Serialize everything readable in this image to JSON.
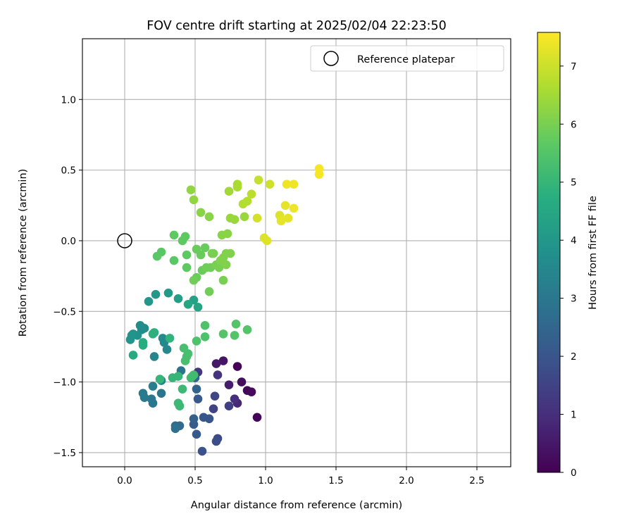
{
  "chart_data": {
    "type": "scatter",
    "title": "FOV centre drift starting at 2025/02/04 22:23:50",
    "xlabel": "Angular distance from reference (arcmin)",
    "ylabel": "Rotation from reference (arcmin)",
    "xlim": [
      -0.3,
      2.74
    ],
    "ylim": [
      -1.6,
      1.43
    ],
    "xticks": [
      0.0,
      0.5,
      1.0,
      1.5,
      2.0,
      2.5
    ],
    "xtick_labels": [
      "0.0",
      "0.5",
      "1.0",
      "1.5",
      "2.0",
      "2.5"
    ],
    "yticks": [
      -1.5,
      -1.0,
      -0.5,
      0.0,
      0.5,
      1.0
    ],
    "ytick_labels": [
      "−1.5",
      "−1.0",
      "−0.5",
      "0.0",
      "0.5",
      "1.0"
    ],
    "grid": true,
    "colormap": "viridis",
    "colorbar": {
      "label": "Hours from first FF file",
      "range": [
        0,
        7.58
      ],
      "ticks": [
        0,
        1,
        2,
        3,
        4,
        5,
        6,
        7
      ],
      "tick_labels": [
        "0",
        "1",
        "2",
        "3",
        "4",
        "5",
        "6",
        "7"
      ]
    },
    "legend": {
      "position": "top-right",
      "entries": [
        {
          "label": "Reference platepar",
          "marker": "open-circle"
        }
      ]
    },
    "reference_point": {
      "x": 0.0,
      "y": 0.0
    },
    "points": [
      {
        "x": 0.8,
        "y": -0.89,
        "c": 0.05
      },
      {
        "x": 0.94,
        "y": -1.25,
        "c": 0.1
      },
      {
        "x": 0.87,
        "y": -1.06,
        "c": 0.15
      },
      {
        "x": 0.9,
        "y": -1.07,
        "c": 0.2
      },
      {
        "x": 0.83,
        "y": -1.0,
        "c": 0.3
      },
      {
        "x": 0.7,
        "y": -0.85,
        "c": 0.4
      },
      {
        "x": 0.65,
        "y": -0.87,
        "c": 0.5
      },
      {
        "x": 0.74,
        "y": -1.02,
        "c": 0.6
      },
      {
        "x": 0.8,
        "y": -1.15,
        "c": 0.8
      },
      {
        "x": 0.78,
        "y": -1.12,
        "c": 1.0
      },
      {
        "x": 0.66,
        "y": -0.95,
        "c": 1.1
      },
      {
        "x": 0.52,
        "y": -0.93,
        "c": 1.2
      },
      {
        "x": 0.74,
        "y": -1.17,
        "c": 1.4
      },
      {
        "x": 0.63,
        "y": -1.19,
        "c": 1.5
      },
      {
        "x": 0.64,
        "y": -1.1,
        "c": 1.6
      },
      {
        "x": 0.66,
        "y": -1.4,
        "c": 1.7
      },
      {
        "x": 0.65,
        "y": -1.42,
        "c": 1.8
      },
      {
        "x": 0.55,
        "y": -1.49,
        "c": 1.9
      },
      {
        "x": 0.6,
        "y": -1.26,
        "c": 2.0
      },
      {
        "x": 0.56,
        "y": -1.25,
        "c": 2.0
      },
      {
        "x": 0.52,
        "y": -1.12,
        "c": 2.1
      },
      {
        "x": 0.51,
        "y": -1.37,
        "c": 2.1
      },
      {
        "x": 0.49,
        "y": -1.3,
        "c": 2.2
      },
      {
        "x": 0.49,
        "y": -1.26,
        "c": 2.3
      },
      {
        "x": 0.51,
        "y": -1.05,
        "c": 2.4
      },
      {
        "x": 0.5,
        "y": -0.97,
        "c": 2.5
      },
      {
        "x": 0.39,
        "y": -1.31,
        "c": 2.6
      },
      {
        "x": 0.36,
        "y": -1.31,
        "c": 2.7
      },
      {
        "x": 0.36,
        "y": -1.33,
        "c": 2.8
      },
      {
        "x": 0.4,
        "y": -0.92,
        "c": 2.9
      },
      {
        "x": 0.26,
        "y": -1.08,
        "c": 2.9
      },
      {
        "x": 0.2,
        "y": -1.15,
        "c": 3.0
      },
      {
        "x": 0.19,
        "y": -1.12,
        "c": 3.0
      },
      {
        "x": 0.14,
        "y": -1.11,
        "c": 3.1
      },
      {
        "x": 0.13,
        "y": -1.08,
        "c": 3.1
      },
      {
        "x": 0.2,
        "y": -1.03,
        "c": 3.2
      },
      {
        "x": 0.26,
        "y": -0.99,
        "c": 3.3
      },
      {
        "x": 0.21,
        "y": -0.82,
        "c": 3.4
      },
      {
        "x": 0.3,
        "y": -0.77,
        "c": 3.5
      },
      {
        "x": 0.28,
        "y": -0.72,
        "c": 3.5
      },
      {
        "x": 0.27,
        "y": -0.69,
        "c": 3.6
      },
      {
        "x": 0.14,
        "y": -0.62,
        "c": 3.6
      },
      {
        "x": 0.11,
        "y": -0.6,
        "c": 3.7
      },
      {
        "x": 0.12,
        "y": -0.63,
        "c": 3.7
      },
      {
        "x": 0.09,
        "y": -0.67,
        "c": 3.8
      },
      {
        "x": 0.06,
        "y": -0.66,
        "c": 3.8
      },
      {
        "x": 0.05,
        "y": -0.67,
        "c": 3.9
      },
      {
        "x": 0.04,
        "y": -0.7,
        "c": 3.9
      },
      {
        "x": 0.17,
        "y": -0.43,
        "c": 4.0
      },
      {
        "x": 0.22,
        "y": -0.38,
        "c": 4.0
      },
      {
        "x": 0.31,
        "y": -0.37,
        "c": 4.1
      },
      {
        "x": 0.38,
        "y": -0.41,
        "c": 4.2
      },
      {
        "x": 0.49,
        "y": -0.42,
        "c": 4.3
      },
      {
        "x": 0.52,
        "y": -0.47,
        "c": 4.4
      },
      {
        "x": 0.45,
        "y": -0.45,
        "c": 4.5
      },
      {
        "x": 0.06,
        "y": -0.81,
        "c": 4.6
      },
      {
        "x": 0.13,
        "y": -0.74,
        "c": 4.7
      },
      {
        "x": 0.13,
        "y": -0.72,
        "c": 4.7
      },
      {
        "x": 0.21,
        "y": -0.65,
        "c": 4.8
      },
      {
        "x": 0.2,
        "y": -0.66,
        "c": 4.8
      },
      {
        "x": 0.32,
        "y": -0.69,
        "c": 4.9
      },
      {
        "x": 0.34,
        "y": -0.97,
        "c": 5.0
      },
      {
        "x": 0.38,
        "y": -0.96,
        "c": 5.0
      },
      {
        "x": 0.25,
        "y": -0.98,
        "c": 5.0
      },
      {
        "x": 0.38,
        "y": -1.15,
        "c": 5.1
      },
      {
        "x": 0.39,
        "y": -1.17,
        "c": 5.1
      },
      {
        "x": 0.41,
        "y": -1.05,
        "c": 5.1
      },
      {
        "x": 0.47,
        "y": -0.97,
        "c": 5.2
      },
      {
        "x": 0.48,
        "y": -0.96,
        "c": 5.2
      },
      {
        "x": 0.49,
        "y": -0.95,
        "c": 5.2
      },
      {
        "x": 0.43,
        "y": -0.85,
        "c": 5.3
      },
      {
        "x": 0.44,
        "y": -0.82,
        "c": 5.3
      },
      {
        "x": 0.45,
        "y": -0.8,
        "c": 5.3
      },
      {
        "x": 0.42,
        "y": -0.76,
        "c": 5.3
      },
      {
        "x": 0.51,
        "y": -0.71,
        "c": 5.4
      },
      {
        "x": 0.57,
        "y": -0.68,
        "c": 5.4
      },
      {
        "x": 0.57,
        "y": -0.6,
        "c": 5.4
      },
      {
        "x": 0.7,
        "y": -0.66,
        "c": 5.5
      },
      {
        "x": 0.78,
        "y": -0.67,
        "c": 5.5
      },
      {
        "x": 0.79,
        "y": -0.59,
        "c": 5.5
      },
      {
        "x": 0.87,
        "y": -0.63,
        "c": 5.5
      },
      {
        "x": 0.23,
        "y": -0.11,
        "c": 5.6
      },
      {
        "x": 0.26,
        "y": -0.08,
        "c": 5.6
      },
      {
        "x": 0.35,
        "y": -0.14,
        "c": 5.6
      },
      {
        "x": 0.44,
        "y": -0.19,
        "c": 5.7
      },
      {
        "x": 0.44,
        "y": -0.1,
        "c": 5.7
      },
      {
        "x": 0.35,
        "y": 0.04,
        "c": 5.7
      },
      {
        "x": 0.41,
        "y": 0.0,
        "c": 5.7
      },
      {
        "x": 0.43,
        "y": 0.03,
        "c": 5.7
      },
      {
        "x": 0.51,
        "y": -0.06,
        "c": 5.8
      },
      {
        "x": 0.54,
        "y": -0.1,
        "c": 5.8
      },
      {
        "x": 0.57,
        "y": -0.05,
        "c": 5.8
      },
      {
        "x": 0.55,
        "y": -0.21,
        "c": 5.8
      },
      {
        "x": 0.51,
        "y": -0.26,
        "c": 5.8
      },
      {
        "x": 0.49,
        "y": -0.28,
        "c": 5.9
      },
      {
        "x": 0.61,
        "y": -0.19,
        "c": 5.9
      },
      {
        "x": 0.58,
        "y": -0.19,
        "c": 5.9
      },
      {
        "x": 0.6,
        "y": -0.36,
        "c": 5.9
      },
      {
        "x": 0.7,
        "y": -0.28,
        "c": 6.0
      },
      {
        "x": 0.62,
        "y": -0.09,
        "c": 6.0
      },
      {
        "x": 0.63,
        "y": -0.09,
        "c": 6.0
      },
      {
        "x": 0.65,
        "y": -0.17,
        "c": 6.0
      },
      {
        "x": 0.67,
        "y": -0.19,
        "c": 6.0
      },
      {
        "x": 0.68,
        "y": -0.14,
        "c": 6.1
      },
      {
        "x": 0.7,
        "y": -0.12,
        "c": 6.1
      },
      {
        "x": 0.72,
        "y": -0.17,
        "c": 6.1
      },
      {
        "x": 0.72,
        "y": -0.09,
        "c": 6.1
      },
      {
        "x": 0.75,
        "y": -0.09,
        "c": 6.1
      },
      {
        "x": 0.69,
        "y": 0.04,
        "c": 6.2
      },
      {
        "x": 0.73,
        "y": 0.05,
        "c": 6.2
      },
      {
        "x": 0.54,
        "y": 0.2,
        "c": 6.2
      },
      {
        "x": 0.6,
        "y": 0.17,
        "c": 6.2
      },
      {
        "x": 0.47,
        "y": 0.36,
        "c": 6.3
      },
      {
        "x": 0.49,
        "y": 0.29,
        "c": 6.3
      },
      {
        "x": 0.75,
        "y": 0.16,
        "c": 6.4
      },
      {
        "x": 0.78,
        "y": 0.15,
        "c": 6.4
      },
      {
        "x": 0.85,
        "y": 0.17,
        "c": 6.4
      },
      {
        "x": 0.74,
        "y": 0.35,
        "c": 6.5
      },
      {
        "x": 0.8,
        "y": 0.38,
        "c": 6.6
      },
      {
        "x": 0.8,
        "y": 0.4,
        "c": 6.6
      },
      {
        "x": 0.84,
        "y": 0.26,
        "c": 6.7
      },
      {
        "x": 0.87,
        "y": 0.28,
        "c": 6.7
      },
      {
        "x": 0.9,
        "y": 0.33,
        "c": 6.8
      },
      {
        "x": 0.95,
        "y": 0.43,
        "c": 6.9
      },
      {
        "x": 1.03,
        "y": 0.4,
        "c": 7.0
      },
      {
        "x": 0.94,
        "y": 0.16,
        "c": 7.1
      },
      {
        "x": 0.99,
        "y": 0.02,
        "c": 7.2
      },
      {
        "x": 1.01,
        "y": 0.0,
        "c": 7.2
      },
      {
        "x": 1.1,
        "y": 0.18,
        "c": 7.2
      },
      {
        "x": 1.11,
        "y": 0.14,
        "c": 7.3
      },
      {
        "x": 1.16,
        "y": 0.16,
        "c": 7.3
      },
      {
        "x": 1.14,
        "y": 0.25,
        "c": 7.3
      },
      {
        "x": 1.2,
        "y": 0.23,
        "c": 7.4
      },
      {
        "x": 1.15,
        "y": 0.4,
        "c": 7.4
      },
      {
        "x": 1.2,
        "y": 0.4,
        "c": 7.4
      },
      {
        "x": 1.38,
        "y": 0.51,
        "c": 7.5
      },
      {
        "x": 1.38,
        "y": 0.47,
        "c": 7.5
      }
    ]
  }
}
